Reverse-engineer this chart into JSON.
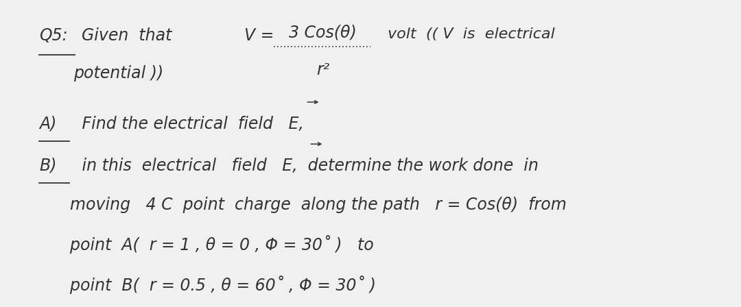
{
  "background_color": "#f0f0f0",
  "text_color": "#333333",
  "font_size": 16,
  "lines": {
    "q5_label": "Q5: Given  that",
    "v_eq": "V = ",
    "frac_num": "3 Cos(θ)",
    "frac_den": "r²",
    "volt_text": "volt  (( V  is  electrical",
    "potential": "potential ))",
    "partA_label": "A)",
    "partA_text": " Find the electrical  field   E,",
    "partB_label": "B)",
    "partB_text": " in this  electrical   field   E,  determine the work done  in",
    "line3": "      moving   4 C  point  charge  along the path   r = Cos(θ)  from",
    "line4": "      point  A(  r = 1 , θ = 0 , Φ = 30˚ )   to",
    "line5": "      point  B(  r = 0.5 , θ = 60˚ , Φ = 30˚ )"
  }
}
